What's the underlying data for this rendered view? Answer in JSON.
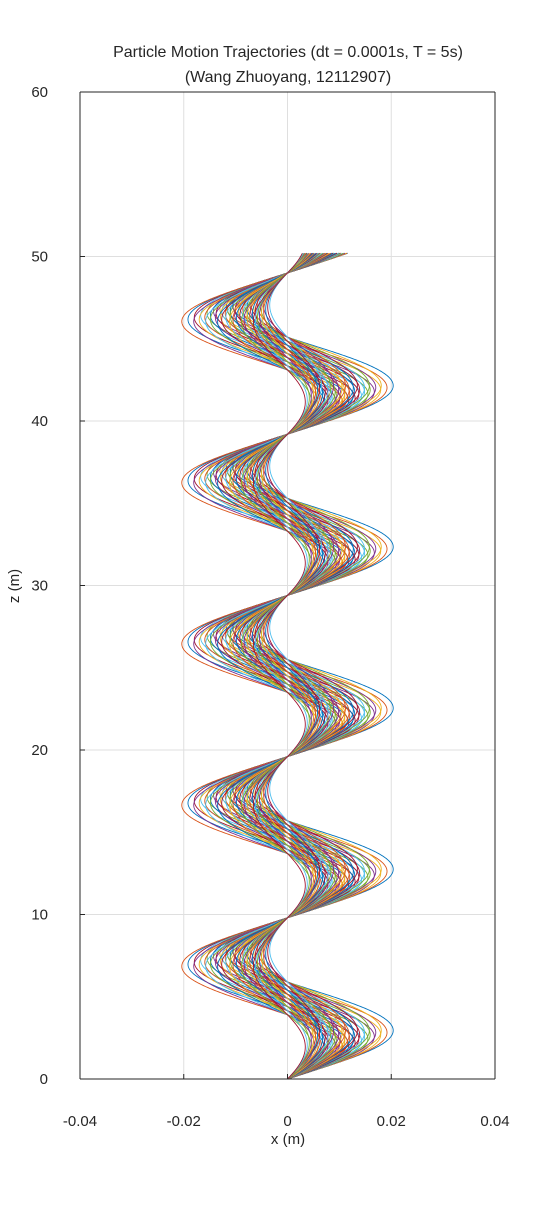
{
  "chart_data": {
    "type": "line",
    "title": "Particle Motion Trajectories (dt = 0.0001s, T = 5s)",
    "subtitle": "(Wang Zhuoyang, 12112907)",
    "xlabel": "x (m)",
    "ylabel": "z (m)",
    "xlim": [
      -0.04,
      0.04
    ],
    "ylim": [
      0,
      60
    ],
    "xticks": [
      -0.04,
      -0.02,
      0,
      0.02,
      0.04
    ],
    "xtick_labels": [
      "-0.04",
      "-0.02",
      "0",
      "0.02",
      "0.04"
    ],
    "yticks": [
      0,
      10,
      20,
      30,
      40,
      50,
      60
    ],
    "ytick_labels": [
      "0",
      "10",
      "20",
      "30",
      "40",
      "50",
      "60"
    ],
    "grid": true,
    "node_period_z": 9.8,
    "z_end": 50.2,
    "amplitudes": [
      0.031,
      0.0275,
      0.024,
      0.0205,
      0.017,
      0.0135,
      0.01
    ],
    "phase_shifts": [
      -0.32,
      -0.24,
      -0.16,
      -0.08,
      0,
      0.08,
      0.16,
      0.24,
      0.32
    ],
    "colors": [
      "#0072BD",
      "#D95319",
      "#EDB120",
      "#7E2F8E",
      "#77AC30",
      "#4DBEEE",
      "#A2142F"
    ]
  }
}
